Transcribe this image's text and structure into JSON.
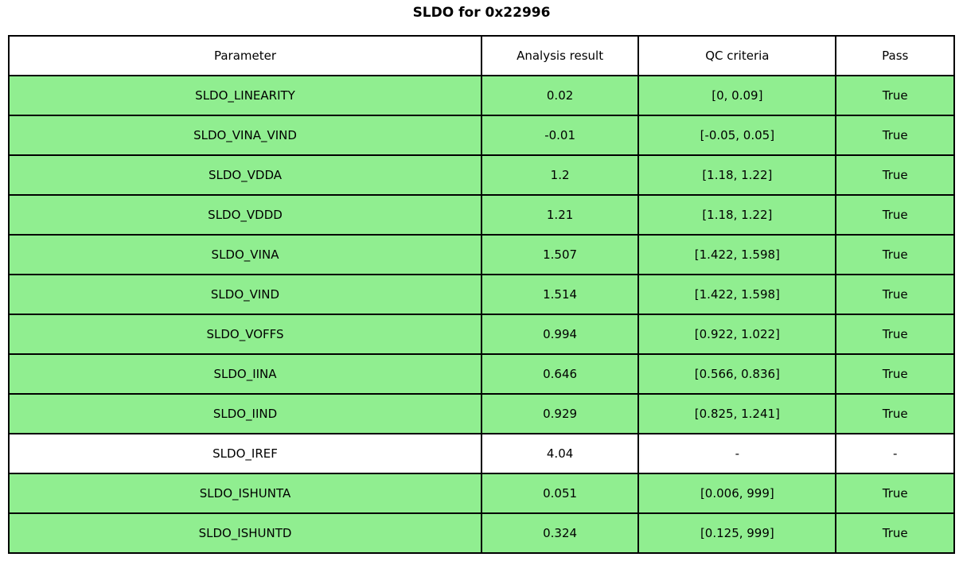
{
  "title": "SLDO for 0x22996",
  "colors": {
    "pass_row_bg": "#90ee90",
    "neutral_row_bg": "#ffffff",
    "border": "#000000",
    "text": "#000000"
  },
  "chart_data": {
    "type": "table",
    "title": "SLDO for 0x22996",
    "columns": [
      "Parameter",
      "Analysis result",
      "QC criteria",
      "Pass"
    ],
    "rows": [
      {
        "parameter": "SLDO_LINEARITY",
        "analysis_result": "0.02",
        "qc_criteria": "[0, 0.09]",
        "pass": "True",
        "highlight": "green"
      },
      {
        "parameter": "SLDO_VINA_VIND",
        "analysis_result": "-0.01",
        "qc_criteria": "[-0.05, 0.05]",
        "pass": "True",
        "highlight": "green"
      },
      {
        "parameter": "SLDO_VDDA",
        "analysis_result": "1.2",
        "qc_criteria": "[1.18, 1.22]",
        "pass": "True",
        "highlight": "green"
      },
      {
        "parameter": "SLDO_VDDD",
        "analysis_result": "1.21",
        "qc_criteria": "[1.18, 1.22]",
        "pass": "True",
        "highlight": "green"
      },
      {
        "parameter": "SLDO_VINA",
        "analysis_result": "1.507",
        "qc_criteria": "[1.422, 1.598]",
        "pass": "True",
        "highlight": "green"
      },
      {
        "parameter": "SLDO_VIND",
        "analysis_result": "1.514",
        "qc_criteria": "[1.422, 1.598]",
        "pass": "True",
        "highlight": "green"
      },
      {
        "parameter": "SLDO_VOFFS",
        "analysis_result": "0.994",
        "qc_criteria": "[0.922, 1.022]",
        "pass": "True",
        "highlight": "green"
      },
      {
        "parameter": "SLDO_IINA",
        "analysis_result": "0.646",
        "qc_criteria": "[0.566, 0.836]",
        "pass": "True",
        "highlight": "green"
      },
      {
        "parameter": "SLDO_IIND",
        "analysis_result": "0.929",
        "qc_criteria": "[0.825, 1.241]",
        "pass": "True",
        "highlight": "green"
      },
      {
        "parameter": "SLDO_IREF",
        "analysis_result": "4.04",
        "qc_criteria": "-",
        "pass": "-",
        "highlight": "white"
      },
      {
        "parameter": "SLDO_ISHUNTA",
        "analysis_result": "0.051",
        "qc_criteria": "[0.006, 999]",
        "pass": "True",
        "highlight": "green"
      },
      {
        "parameter": "SLDO_ISHUNTD",
        "analysis_result": "0.324",
        "qc_criteria": "[0.125, 999]",
        "pass": "True",
        "highlight": "green"
      }
    ]
  }
}
